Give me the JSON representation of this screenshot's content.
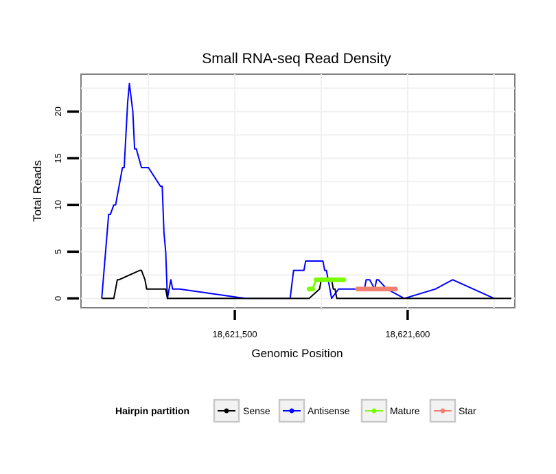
{
  "chart_data": {
    "type": "line",
    "title": "Small RNA-seq Read Density",
    "xlabel": "Genomic Position",
    "ylabel": "Total Reads",
    "xlim": [
      18621411,
      18621662
    ],
    "ylim": [
      -1,
      24
    ],
    "x_ticks": [
      18621500,
      18621600
    ],
    "x_tick_labels": [
      "18,621,500",
      "18,621,600"
    ],
    "y_ticks": [
      0,
      5,
      10,
      15,
      20
    ],
    "y_tick_labels": [
      "0",
      "5",
      "10",
      "15",
      "20"
    ],
    "grid": true,
    "legend": {
      "title": "Hairpin partition",
      "position": "bottom",
      "entries": [
        {
          "name": "Sense",
          "color": "#000000"
        },
        {
          "name": "Antisense",
          "color": "#0000ff"
        },
        {
          "name": "Mature",
          "color": "#7cfc00"
        },
        {
          "name": "Star",
          "color": "#f08070"
        }
      ]
    },
    "series": [
      {
        "name": "Antisense",
        "color": "#0000ff",
        "x": [
          18621423,
          18621427,
          18621428,
          18621430,
          18621431,
          18621435,
          18621436,
          18621438,
          18621439,
          18621441,
          18621442,
          18621443,
          18621446,
          18621447,
          18621448,
          18621450,
          18621457,
          18621458,
          18621459,
          18621460,
          18621461,
          18621462,
          18621463,
          18621464,
          18621465,
          18621468,
          18621506,
          18621532,
          18621534,
          18621540,
          18621541,
          18621551,
          18621552,
          18621553,
          18621555,
          18621556,
          18621560,
          18621564,
          18621575,
          18621576,
          18621578,
          18621581,
          18621582,
          18621583,
          18621588,
          18621598,
          18621616,
          18621626,
          18621650
        ],
        "y": [
          0,
          9,
          9,
          10,
          10,
          14,
          14,
          21,
          23,
          20,
          16,
          16,
          14,
          14,
          14,
          14,
          12,
          12,
          7,
          5,
          0,
          1,
          2,
          1,
          1,
          1,
          0,
          0,
          3,
          3,
          4,
          4,
          3,
          3,
          1,
          0,
          1,
          1,
          1,
          2,
          2,
          1,
          2,
          2,
          1,
          0,
          1,
          2,
          0
        ]
      },
      {
        "name": "Sense",
        "color": "#000000",
        "x": [
          18621423,
          18621430,
          18621431,
          18621432,
          18621433,
          18621445,
          18621446,
          18621448,
          18621449,
          18621450,
          18621460,
          18621461,
          18621462,
          18621506,
          18621543,
          18621549,
          18621550,
          18621556,
          18621557,
          18621558,
          18621559,
          18621574,
          18621575,
          18621648,
          18621660
        ],
        "y": [
          0,
          0,
          1,
          2,
          2,
          3,
          3,
          2,
          1,
          1,
          1,
          0,
          0,
          0,
          0,
          1,
          2,
          2,
          1,
          1,
          0,
          0,
          0,
          0,
          0
        ]
      },
      {
        "name": "Mature",
        "color": "#7cfc00",
        "x": [
          18621543,
          18621544,
          18621545,
          18621547,
          18621548,
          18621549,
          18621550,
          18621551,
          18621552,
          18621553,
          18621554,
          18621555,
          18621556,
          18621557,
          18621558,
          18621559,
          18621560,
          18621561,
          18621562,
          18621563
        ],
        "y": [
          1,
          1,
          1,
          2,
          2,
          2,
          2,
          2,
          2,
          2,
          2,
          2,
          2,
          2,
          2,
          2,
          2,
          2,
          2,
          2
        ]
      },
      {
        "name": "Star",
        "color": "#f08070",
        "x": [
          18621571,
          18621572,
          18621573,
          18621574,
          18621575,
          18621576,
          18621577,
          18621578,
          18621579,
          18621580,
          18621581,
          18621582,
          18621583,
          18621584,
          18621585,
          18621586,
          18621587,
          18621588,
          18621589,
          18621590,
          18621591,
          18621592,
          18621593
        ],
        "y": [
          1,
          1,
          1,
          1,
          1,
          1,
          1,
          1,
          1,
          1,
          1,
          1,
          1,
          1,
          1,
          1,
          1,
          1,
          1,
          1,
          1,
          1,
          1
        ]
      }
    ]
  }
}
